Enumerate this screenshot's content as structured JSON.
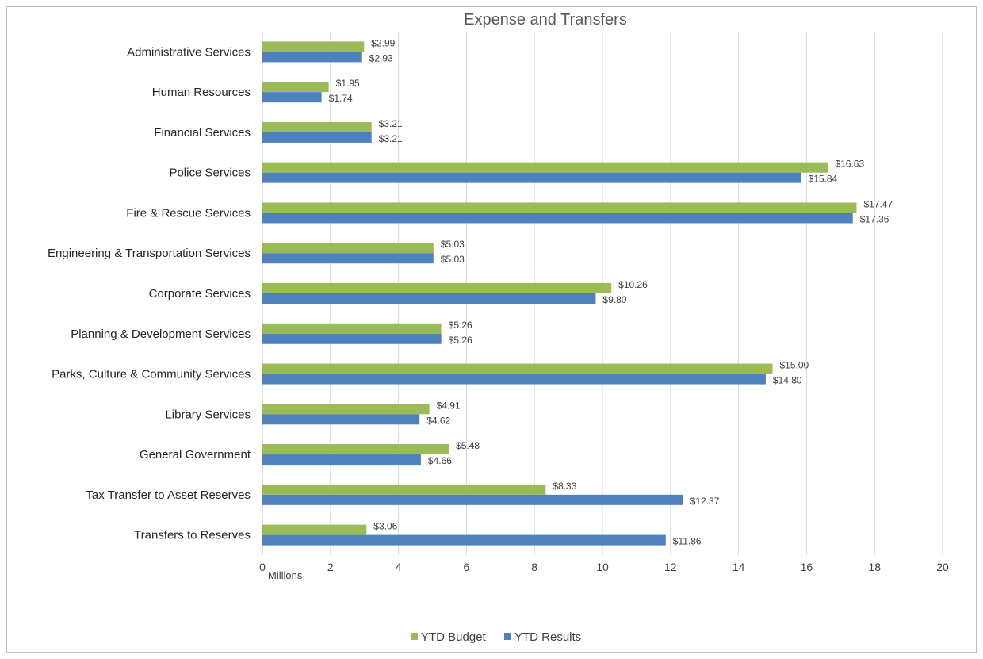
{
  "chart_data": {
    "type": "bar",
    "orientation": "horizontal",
    "title": "Expense and Transfers",
    "unit_label": "Millions",
    "xlim": [
      0,
      20
    ],
    "x_ticks": [
      "0",
      "2",
      "4",
      "6",
      "8",
      "10",
      "12",
      "14",
      "16",
      "18",
      "20"
    ],
    "grid": true,
    "legend_position": "bottom",
    "categories": [
      "Administrative Services",
      "Human Resources",
      "Financial Services",
      "Police Services",
      "Fire & Rescue Services",
      "Engineering & Transportation Services",
      "Corporate Services",
      "Planning & Development Services",
      "Parks, Culture & Community Services",
      "Library Services",
      "General Government",
      "Tax Transfer to Asset Reserves",
      "Transfers to Reserves"
    ],
    "series": [
      {
        "name": "YTD Budget",
        "color": "#9BBB59",
        "values": [
          2.99,
          1.95,
          3.21,
          16.63,
          17.47,
          5.03,
          10.26,
          5.26,
          15.0,
          4.91,
          5.48,
          8.33,
          3.06
        ],
        "labels": [
          "$2.99",
          "$1.95",
          "$3.21",
          "$16.63",
          "$17.47",
          "$5.03",
          "$10.26",
          "$5.26",
          "$15.00",
          "$4.91",
          "$5.48",
          "$8.33",
          "$3.06"
        ]
      },
      {
        "name": "YTD Results",
        "color": "#4F81BD",
        "values": [
          2.93,
          1.74,
          3.21,
          15.84,
          17.36,
          5.03,
          9.8,
          5.26,
          14.8,
          4.62,
          4.66,
          12.37,
          11.86
        ],
        "labels": [
          "$2.93",
          "$1.74",
          "$3.21",
          "$15.84",
          "$17.36",
          "$5.03",
          "$9.80",
          "$5.26",
          "$14.80",
          "$4.62",
          "$4.66",
          "$12.37",
          "$11.86"
        ]
      }
    ]
  }
}
